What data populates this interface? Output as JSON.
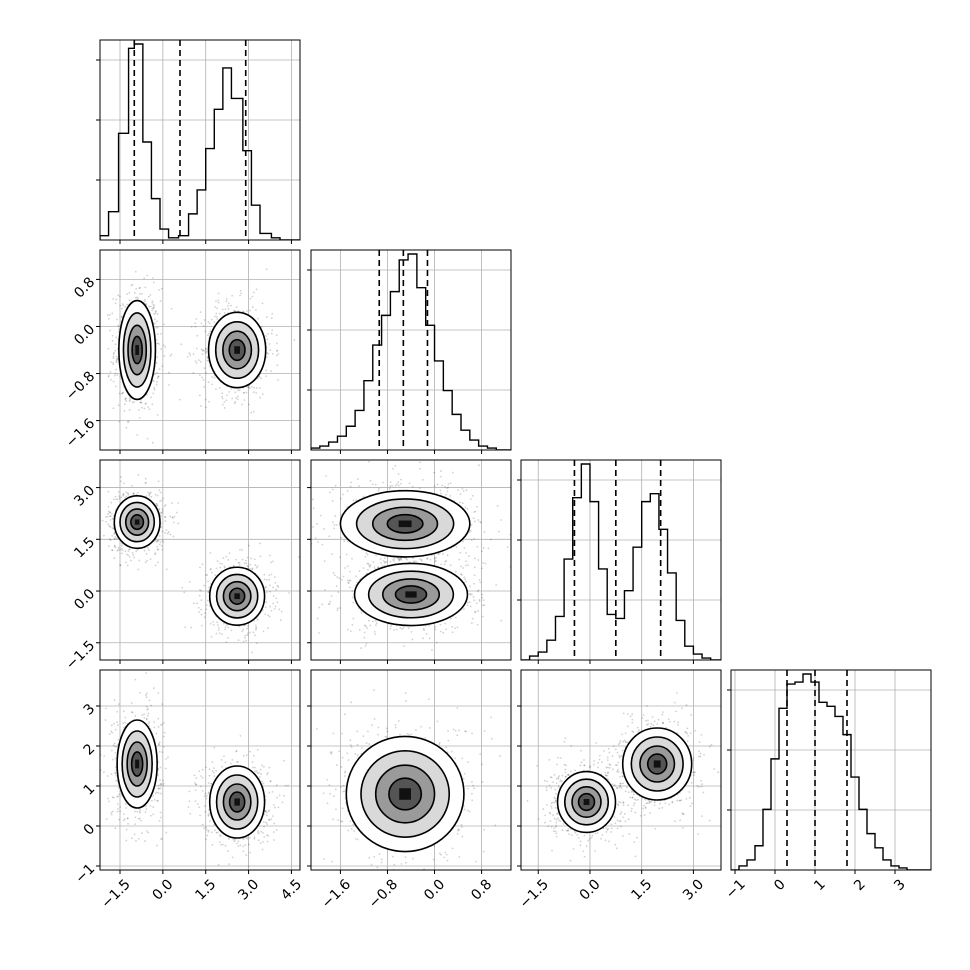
{
  "chart_data": {
    "type": "corner",
    "grid": true,
    "n_params": 4,
    "params": [
      {
        "range": [
          -2.2,
          4.8
        ],
        "ticks": [
          -1.5,
          0.0,
          1.5,
          3.0,
          4.5
        ],
        "tick_labels": [
          "−1.5",
          "0.0",
          "1.5",
          "3.0",
          "4.5"
        ],
        "quantiles": [
          -1.0,
          0.6,
          2.9
        ],
        "hist_bins": [
          -2.2,
          -1.9,
          -1.55,
          -1.2,
          -1.0,
          -0.7,
          -0.4,
          -0.1,
          0.2,
          0.55,
          0.9,
          1.2,
          1.5,
          1.8,
          2.1,
          2.4,
          2.8,
          3.1,
          3.4,
          3.8,
          4.1,
          4.4,
          4.8
        ],
        "hist_counts": [
          0.02,
          0.13,
          0.49,
          0.88,
          0.9,
          0.45,
          0.19,
          0.05,
          0.01,
          0.02,
          0.12,
          0.23,
          0.42,
          0.6,
          0.79,
          0.65,
          0.41,
          0.16,
          0.03,
          0.01,
          0.0,
          0.0
        ]
      },
      {
        "range": [
          -2.1,
          1.3
        ],
        "ticks": [
          -1.6,
          -0.8,
          0.0,
          0.8
        ],
        "tick_labels": [
          "−1.6",
          "−0.8",
          "0.0",
          "0.8"
        ],
        "quantiles": [
          -0.94,
          -0.53,
          -0.12
        ],
        "hist_bins": [
          -2.1,
          -1.95,
          -1.8,
          -1.65,
          -1.5,
          -1.35,
          -1.2,
          -1.05,
          -0.9,
          -0.75,
          -0.6,
          -0.45,
          -0.3,
          -0.15,
          0.0,
          0.15,
          0.3,
          0.45,
          0.6,
          0.75,
          0.9,
          1.05,
          1.2
        ],
        "hist_counts": [
          0.01,
          0.02,
          0.04,
          0.07,
          0.12,
          0.2,
          0.35,
          0.53,
          0.68,
          0.8,
          0.96,
          0.99,
          0.82,
          0.63,
          0.45,
          0.3,
          0.18,
          0.1,
          0.05,
          0.02,
          0.01,
          0.0
        ]
      },
      {
        "range": [
          -2.0,
          3.8
        ],
        "ticks": [
          -1.5,
          0.0,
          1.5,
          3.0
        ],
        "tick_labels": [
          "−1.5",
          "0.0",
          "1.5",
          "3.0"
        ],
        "quantiles": [
          -0.45,
          0.75,
          2.05
        ],
        "hist_bins": [
          -2.0,
          -1.75,
          -1.5,
          -1.25,
          -1.0,
          -0.75,
          -0.5,
          -0.25,
          0.0,
          0.25,
          0.5,
          0.75,
          1.0,
          1.25,
          1.5,
          1.75,
          2.0,
          2.25,
          2.5,
          2.75,
          3.0,
          3.25,
          3.5,
          3.8
        ],
        "hist_counts": [
          0.0,
          0.02,
          0.04,
          0.1,
          0.22,
          0.51,
          0.82,
          0.99,
          0.8,
          0.46,
          0.23,
          0.21,
          0.35,
          0.57,
          0.8,
          0.84,
          0.66,
          0.44,
          0.2,
          0.07,
          0.03,
          0.01,
          0.0
        ]
      },
      {
        "range": [
          -1.1,
          3.9
        ],
        "ticks": [
          -1,
          0,
          1,
          2,
          3
        ],
        "tick_labels": [
          "−1",
          "0",
          "1",
          "2",
          "3"
        ],
        "quantiles": [
          0.3,
          1.0,
          1.8
        ],
        "hist_bins": [
          -1.1,
          -0.9,
          -0.7,
          -0.5,
          -0.3,
          -0.1,
          0.1,
          0.3,
          0.5,
          0.7,
          0.9,
          1.1,
          1.3,
          1.5,
          1.7,
          1.9,
          2.1,
          2.3,
          2.5,
          2.7,
          2.9,
          3.1,
          3.3,
          3.9
        ],
        "hist_counts": [
          0.0,
          0.02,
          0.05,
          0.12,
          0.3,
          0.55,
          0.8,
          0.92,
          0.93,
          0.97,
          0.93,
          0.83,
          0.81,
          0.76,
          0.67,
          0.46,
          0.3,
          0.18,
          0.11,
          0.05,
          0.02,
          0.01,
          0.0
        ]
      }
    ],
    "y_tick_rows": [
      {
        "row": 1,
        "ticks": [
          -1.6,
          -0.8,
          0.0,
          0.8
        ],
        "tick_labels": [
          "−1.6",
          "−0.8",
          "0.0",
          "0.8"
        ]
      },
      {
        "row": 2,
        "ticks": [
          -1.5,
          0.0,
          1.5,
          3.0
        ],
        "tick_labels": [
          "−1.5",
          "0.0",
          "1.5",
          "3.0"
        ]
      },
      {
        "row": 3,
        "ticks": [
          -1,
          0,
          1,
          2,
          3
        ],
        "tick_labels": [
          "−1",
          "0",
          "1",
          "2",
          "3"
        ]
      }
    ],
    "clusters": {
      "1-0": [
        {
          "cx": -0.9,
          "cy": -0.4,
          "sx": 0.32,
          "sy": 0.42
        },
        {
          "cx": 2.6,
          "cy": -0.4,
          "sx": 0.5,
          "sy": 0.32
        }
      ],
      "2-0": [
        {
          "cx": -0.9,
          "cy": 2.0,
          "sx": 0.4,
          "sy": 0.38
        },
        {
          "cx": 2.6,
          "cy": -0.15,
          "sx": 0.48,
          "sy": 0.42
        }
      ],
      "2-1": [
        {
          "cx": -0.5,
          "cy": 1.95,
          "sx": 0.55,
          "sy": 0.48
        },
        {
          "cx": -0.4,
          "cy": -0.1,
          "sx": 0.48,
          "sy": 0.45
        }
      ],
      "3-0": [
        {
          "cx": -0.9,
          "cy": 1.55,
          "sx": 0.35,
          "sy": 0.55
        },
        {
          "cx": 2.6,
          "cy": 0.6,
          "sx": 0.48,
          "sy": 0.45
        }
      ],
      "3-1": [
        {
          "cx": -0.5,
          "cy": 0.8,
          "sx": 0.5,
          "sy": 0.72
        }
      ],
      "3-2": [
        {
          "cx": -0.1,
          "cy": 0.6,
          "sx": 0.42,
          "sy": 0.38
        },
        {
          "cx": 1.95,
          "cy": 1.55,
          "sx": 0.5,
          "sy": 0.45
        }
      ]
    }
  }
}
